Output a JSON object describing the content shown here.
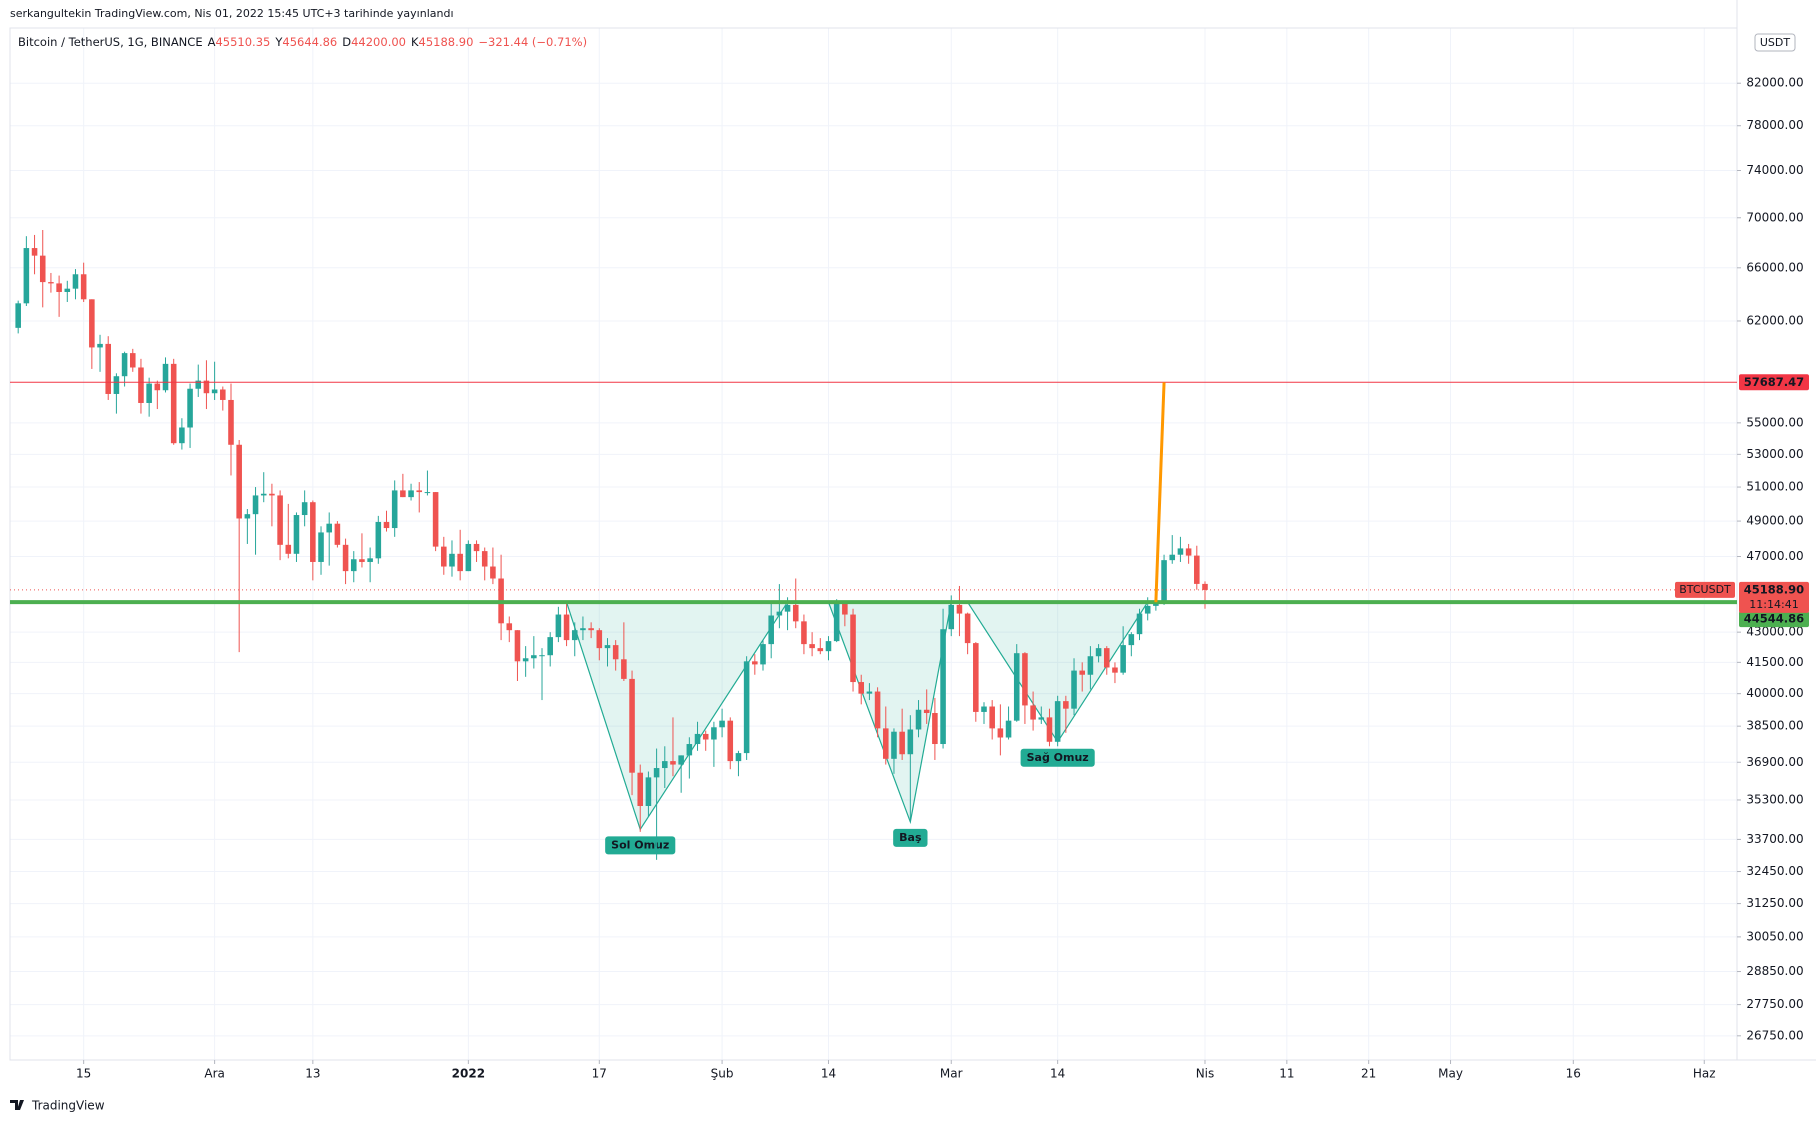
{
  "header": {
    "published": "serkangultekin TradingView.com, Nis 01, 2022 15:45 UTC+3 tarihinde yayınlandı",
    "footer": "TradingView"
  },
  "chart_data": {
    "type": "candlestick",
    "symbol": "Bitcoin / TetherUS, 1G, BINANCE",
    "ohlc_legend": {
      "labels": [
        "A",
        "Y",
        "D",
        "K"
      ],
      "values": [
        "45510.35",
        "45644.86",
        "44200.00",
        "45188.90"
      ],
      "change": "−321.44 (−0.71%)"
    },
    "currency": "USDT",
    "log": true,
    "grid": true,
    "up_color": "#26a69a",
    "down_color": "#ef5350",
    "xlim": [
      -1,
      210
    ],
    "ylim": [
      26000,
      87500
    ],
    "xticks": [
      {
        "value": 8,
        "label": "15"
      },
      {
        "value": 24,
        "label": "Ara"
      },
      {
        "value": 36,
        "label": "13"
      },
      {
        "value": 55,
        "label": "2022"
      },
      {
        "value": 71,
        "label": "17"
      },
      {
        "value": 86,
        "label": "Şub"
      },
      {
        "value": 99,
        "label": "14"
      },
      {
        "value": 114,
        "label": "Mar"
      },
      {
        "value": 127,
        "label": "14"
      },
      {
        "value": 145,
        "label": "Nis"
      },
      {
        "value": 155,
        "label": "11"
      },
      {
        "value": 165,
        "label": "21"
      },
      {
        "value": 175,
        "label": "May"
      },
      {
        "value": 190,
        "label": "16"
      },
      {
        "value": 206,
        "label": "Haz"
      }
    ],
    "yticks": [
      {
        "value": 82000,
        "label": "82000.00"
      },
      {
        "value": 78000,
        "label": "78000.00"
      },
      {
        "value": 74000,
        "label": "74000.00"
      },
      {
        "value": 70000,
        "label": "70000.00"
      },
      {
        "value": 66000,
        "label": "66000.00"
      },
      {
        "value": 62000,
        "label": "62000.00"
      },
      {
        "value": 55000,
        "label": "55000.00"
      },
      {
        "value": 53000,
        "label": "53000.00"
      },
      {
        "value": 51000,
        "label": "51000.00"
      },
      {
        "value": 49000,
        "label": "49000.00"
      },
      {
        "value": 47000,
        "label": "47000.00"
      },
      {
        "value": 43000,
        "label": "43000.00"
      },
      {
        "value": 41500,
        "label": "41500.00"
      },
      {
        "value": 40000,
        "label": "40000.00"
      },
      {
        "value": 38500,
        "label": "38500.00"
      },
      {
        "value": 36900,
        "label": "36900.00"
      },
      {
        "value": 35300,
        "label": "35300.00"
      },
      {
        "value": 33700,
        "label": "33700.00"
      },
      {
        "value": 32450,
        "label": "32450.00"
      },
      {
        "value": 31250,
        "label": "31250.00"
      },
      {
        "value": 30050,
        "label": "30050.00"
      },
      {
        "value": 28850,
        "label": "28850.00"
      },
      {
        "value": 27750,
        "label": "27750.00"
      },
      {
        "value": 26750,
        "label": "26750.00"
      }
    ],
    "open": [
      61500,
      63300,
      67550,
      66950,
      64900,
      64800,
      64150,
      64400,
      65500,
      63600,
      60100,
      60350,
      56900,
      58100,
      59700,
      58700,
      56300,
      57600,
      57150,
      58950,
      53700,
      54700,
      57250,
      57800,
      56950,
      57200,
      56500,
      53600,
      49150,
      49400,
      50500,
      50600,
      50500,
      47650,
      47150,
      49350,
      50100,
      46700,
      48350,
      48850,
      47650,
      46200,
      46850,
      46700,
      46900,
      48950,
      48600,
      50800,
      50400,
      50800,
      50700,
      50700,
      47550,
      46450,
      47150,
      46200,
      47700,
      47300,
      46450,
      45800,
      43450,
      43100,
      41550,
      41700,
      41850,
      41850,
      42750,
      43900,
      42600,
      43100,
      43200,
      43100,
      42200,
      42350,
      41650,
      40700,
      36450,
      35050,
      36250,
      36650,
      36950,
      36800,
      37200,
      37700,
      38150,
      37900,
      38450,
      38750,
      36950,
      37300,
      41550,
      41400,
      42400,
      43850,
      44050,
      44400,
      43550,
      42400,
      42200,
      42050,
      42550,
      44550,
      43900,
      40550,
      40000,
      40100,
      38400,
      37050,
      38250,
      37250,
      38350,
      39250,
      39100,
      37700,
      43150,
      44400,
      43950,
      42450,
      39150,
      39400,
      38400,
      37990,
      38750,
      41950,
      39450,
      38800,
      38900,
      37800,
      39650,
      39300,
      41100,
      40900,
      41800,
      42200,
      41250,
      41000,
      42350,
      42900,
      43950,
      44350,
      44500,
      46800,
      47100,
      47450,
      47050,
      45510.35
    ],
    "high": [
      63500,
      68500,
      68600,
      69000,
      65600,
      65400,
      65000,
      65900,
      66400,
      63600,
      61000,
      60900,
      58300,
      59800,
      60000,
      59300,
      58000,
      57800,
      59400,
      59300,
      55300,
      57600,
      58900,
      59200,
      59100,
      57400,
      57600,
      53900,
      49700,
      51000,
      51900,
      51200,
      50800,
      50000,
      49500,
      50800,
      50200,
      48700,
      49500,
      49000,
      48000,
      47300,
      48300,
      47500,
      49300,
      49600,
      51400,
      51800,
      51200,
      51300,
      52000,
      50700,
      48100,
      47900,
      48500,
      47900,
      47900,
      47500,
      47500,
      47100,
      43800,
      43100,
      42300,
      42800,
      42200,
      43000,
      44300,
      44500,
      43500,
      43800,
      43500,
      43200,
      42700,
      42600,
      43500,
      41100,
      36800,
      36500,
      37500,
      37600,
      38900,
      37200,
      38000,
      38700,
      38300,
      38700,
      39300,
      38900,
      37400,
      41800,
      41900,
      42600,
      44500,
      45500,
      44800,
      45800,
      43900,
      43000,
      42700,
      42800,
      44700,
      44600,
      44200,
      40900,
      40500,
      40300,
      39400,
      38400,
      39300,
      39000,
      39700,
      40200,
      39800,
      44200,
      44900,
      45400,
      44000,
      42500,
      39600,
      39700,
      39500,
      39400,
      42400,
      42000,
      40100,
      39400,
      39300,
      39900,
      39900,
      41700,
      41500,
      42300,
      42400,
      42300,
      41500,
      43300,
      43000,
      44200,
      44800,
      44800,
      47100,
      48200,
      48100,
      47700,
      47600,
      45644.86
    ],
    "low": [
      61100,
      63100,
      65500,
      63000,
      64100,
      62300,
      63400,
      63600,
      63400,
      58600,
      58400,
      56500,
      55600,
      57400,
      58400,
      55600,
      55400,
      55900,
      57000,
      53600,
      53300,
      53400,
      56700,
      55900,
      56500,
      55800,
      51700,
      42000,
      47700,
      47100,
      50100,
      48700,
      46800,
      46900,
      46700,
      48700,
      45700,
      46000,
      46500,
      47500,
      45500,
      45600,
      46400,
      45600,
      46600,
      48400,
      48100,
      50400,
      50200,
      49500,
      50500,
      47300,
      46000,
      45900,
      45700,
      46200,
      46700,
      45700,
      45500,
      42600,
      42500,
      40600,
      40800,
      41200,
      39700,
      41300,
      42500,
      42300,
      41800,
      42600,
      42700,
      41600,
      41300,
      41100,
      40600,
      35500,
      34000,
      34600,
      32900,
      35800,
      36300,
      35600,
      36200,
      37400,
      37400,
      36700,
      38000,
      36600,
      36300,
      37000,
      40900,
      41100,
      41700,
      43200,
      43100,
      43200,
      41900,
      41800,
      41900,
      41600,
      42500,
      43300,
      40100,
      39500,
      39700,
      38000,
      36800,
      36400,
      37000,
      34400,
      38000,
      38600,
      37000,
      37500,
      42800,
      42800,
      41900,
      38700,
      38600,
      37900,
      37200,
      37900,
      38700,
      38600,
      38300,
      38600,
      37600,
      37600,
      38200,
      39000,
      40100,
      40200,
      41500,
      40900,
      40500,
      40900,
      41800,
      42600,
      43600,
      44100,
      44400,
      46600,
      46700,
      46600,
      45200,
      44200
    ],
    "close": [
      63300,
      67550,
      66950,
      64900,
      64800,
      64150,
      64400,
      65500,
      63600,
      60100,
      60350,
      56900,
      58100,
      59700,
      58700,
      56300,
      57600,
      57150,
      58950,
      53700,
      54700,
      57250,
      57800,
      56950,
      57200,
      56500,
      53600,
      49150,
      49400,
      50500,
      50600,
      50500,
      47650,
      47150,
      49350,
      50100,
      46700,
      48350,
      48850,
      47650,
      46200,
      46850,
      46700,
      46900,
      48950,
      48600,
      50800,
      50400,
      50800,
      50700,
      50700,
      47550,
      46450,
      47150,
      46200,
      47700,
      47300,
      46450,
      45800,
      43450,
      43100,
      41550,
      41700,
      41850,
      41850,
      42750,
      43900,
      42600,
      43100,
      43200,
      43100,
      42200,
      42350,
      41650,
      40700,
      36450,
      35050,
      36250,
      36650,
      36950,
      36800,
      37200,
      37700,
      38150,
      37900,
      38450,
      38750,
      36950,
      37300,
      41550,
      41400,
      42400,
      43850,
      44050,
      44400,
      43550,
      42400,
      42200,
      42050,
      42550,
      44550,
      43900,
      40550,
      40000,
      40100,
      38400,
      37050,
      38250,
      37250,
      38350,
      39250,
      39100,
      37700,
      43150,
      44400,
      43950,
      42450,
      39150,
      39400,
      38400,
      37990,
      38750,
      41950,
      39450,
      38800,
      38900,
      37800,
      39650,
      39300,
      41100,
      40900,
      41800,
      42200,
      41250,
      41000,
      42350,
      42900,
      43950,
      44350,
      44500,
      46800,
      47100,
      47450,
      47050,
      45510.35,
      45188.9
    ],
    "price_lines": [
      {
        "value": 57687.47,
        "color": "#f23645"
      },
      {
        "value": 44544.86,
        "color": "#4caf50"
      }
    ],
    "last_price": {
      "symbol": "BTCUSDT",
      "value": 45188.9,
      "label": "45188.90",
      "countdown": "11:14:41",
      "color": "#ef5350"
    },
    "patterns": [
      {
        "label": "Sol Omuz",
        "x": [
          67,
          76,
          94
        ],
        "y": [
          44544.86,
          34100,
          44544.86
        ]
      },
      {
        "label": "Baş",
        "x": [
          99,
          109,
          114
        ],
        "y": [
          44544.86,
          34400,
          44544.86
        ]
      },
      {
        "label": "Sağ Omuz",
        "x": [
          116,
          127,
          138
        ],
        "y": [
          44544.86,
          37800,
          44544.86
        ]
      }
    ],
    "pattern_color": "#22ab94",
    "projection": {
      "color": "#ff9800",
      "x": [
        139,
        140
      ],
      "y": [
        44544.86,
        57687.47
      ]
    }
  }
}
